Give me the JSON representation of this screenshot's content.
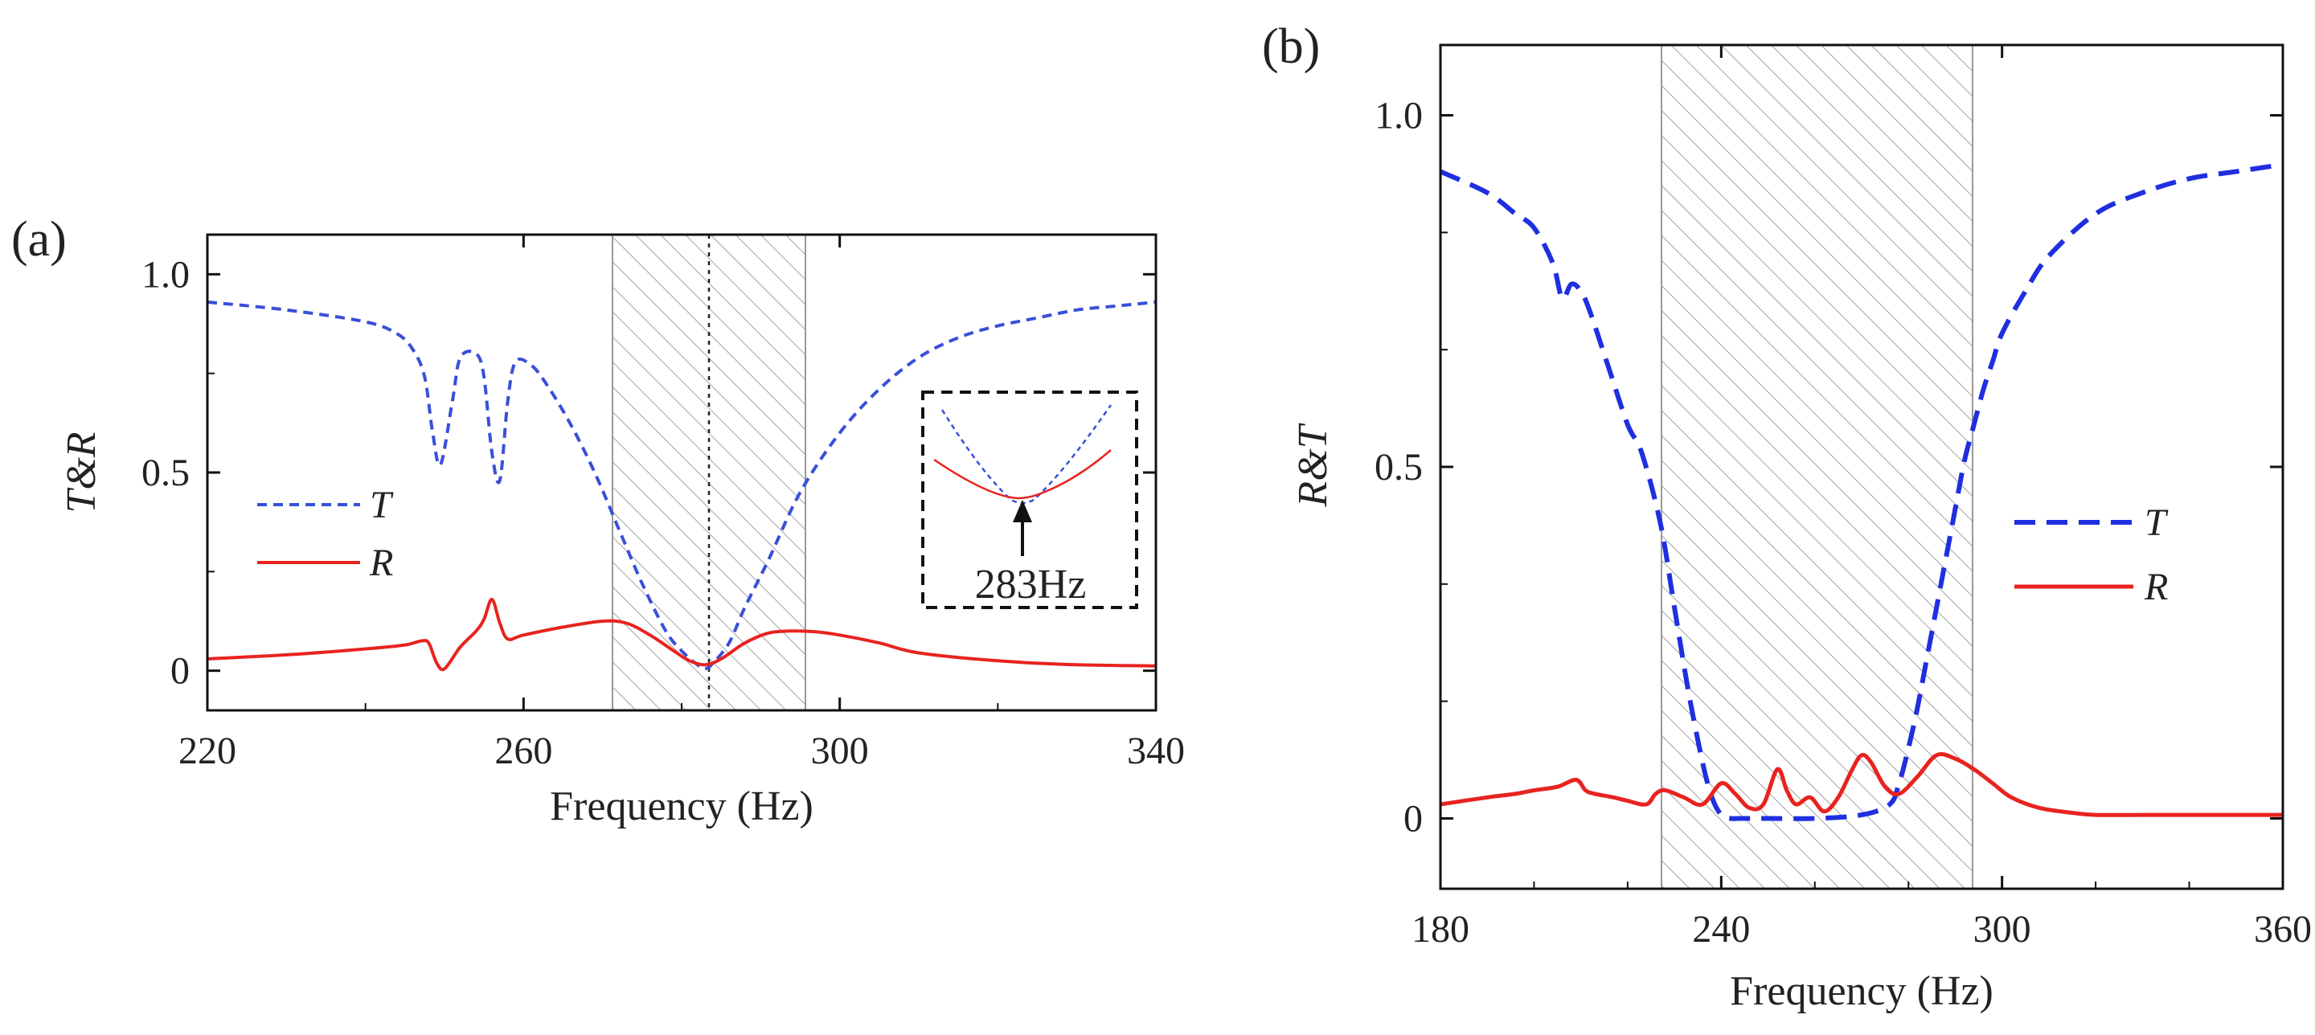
{
  "chart_data": [
    {
      "panel": "(a)",
      "type": "line",
      "xlabel": "Frequency (Hz)",
      "ylabel": "T&R",
      "xlim": [
        220,
        340
      ],
      "ylim": [
        -0.1,
        1.1
      ],
      "xticks": [
        220,
        260,
        300,
        340
      ],
      "yticks": [
        0,
        0.5,
        1.0
      ],
      "ytick_labels": [
        "0",
        "0.5",
        "1.0"
      ],
      "band": [
        271,
        295
      ],
      "marker_line_x": 283,
      "series": [
        {
          "name": "T",
          "style": "dashed",
          "color": "#3a4fd8",
          "x": [
            220,
            230,
            240,
            244,
            246,
            247.5,
            248.5,
            249.5,
            251,
            252,
            254,
            255,
            256,
            257,
            258,
            259,
            261,
            263,
            266,
            269,
            272,
            275,
            278,
            280,
            282,
            283,
            284,
            286,
            288,
            291,
            295,
            300,
            305,
            310,
            315,
            320,
            325,
            330,
            335,
            340
          ],
          "values": [
            0.93,
            0.91,
            0.88,
            0.85,
            0.81,
            0.74,
            0.6,
            0.52,
            0.68,
            0.79,
            0.8,
            0.74,
            0.55,
            0.48,
            0.68,
            0.78,
            0.77,
            0.72,
            0.62,
            0.5,
            0.36,
            0.22,
            0.1,
            0.05,
            0.015,
            0.005,
            0.02,
            0.07,
            0.16,
            0.28,
            0.45,
            0.6,
            0.71,
            0.79,
            0.84,
            0.87,
            0.89,
            0.91,
            0.92,
            0.93
          ]
        },
        {
          "name": "R",
          "style": "solid",
          "color": "#e8231f",
          "x": [
            220,
            230,
            240,
            245,
            247,
            248,
            249,
            250,
            252,
            254,
            255,
            256,
            257,
            258,
            260,
            265,
            270,
            273,
            276,
            279,
            281,
            283,
            285,
            288,
            291,
            294,
            297,
            300,
            305,
            310,
            320,
            330,
            340
          ],
          "values": [
            0.03,
            0.04,
            0.055,
            0.065,
            0.075,
            0.07,
            0.02,
            0.005,
            0.06,
            0.1,
            0.13,
            0.18,
            0.12,
            0.08,
            0.09,
            0.11,
            0.125,
            0.12,
            0.09,
            0.05,
            0.025,
            0.015,
            0.03,
            0.07,
            0.095,
            0.1,
            0.098,
            0.09,
            0.07,
            0.045,
            0.025,
            0.015,
            0.012
          ]
        }
      ],
      "legend": [
        {
          "label": "T",
          "style": "dashed",
          "color": "#3a4fd8"
        },
        {
          "label": "R",
          "style": "solid",
          "color": "#e8231f"
        }
      ],
      "legend_position": "left-center",
      "inset": {
        "annotation": "283Hz",
        "description_position": "right-center"
      }
    },
    {
      "panel": "(b)",
      "type": "line",
      "xlabel": "Frequency (Hz)",
      "ylabel": "R&T",
      "xlim": [
        180,
        360
      ],
      "ylim": [
        -0.1,
        1.1
      ],
      "xticks": [
        180,
        240,
        300,
        360
      ],
      "yticks": [
        0,
        0.5,
        1.0
      ],
      "ytick_labels": [
        "0",
        "0.5",
        "1.0"
      ],
      "band": [
        228,
        294
      ],
      "series": [
        {
          "name": "T",
          "style": "dashed",
          "color": "#1f2fe0",
          "x": [
            180,
            190,
            196,
            200,
            204,
            206,
            208,
            210,
            212,
            216,
            220,
            223,
            227,
            230,
            233,
            236,
            238,
            240,
            242,
            244,
            250,
            260,
            270,
            276,
            278,
            280,
            282,
            284,
            286,
            288,
            290,
            292,
            294,
            296,
            298,
            300,
            305,
            310,
            320,
            330,
            340,
            350,
            360
          ],
          "values": [
            0.92,
            0.89,
            0.86,
            0.84,
            0.79,
            0.74,
            0.76,
            0.75,
            0.72,
            0.64,
            0.56,
            0.52,
            0.42,
            0.3,
            0.18,
            0.08,
            0.03,
            0.005,
            0.0,
            0.0,
            0.0,
            0.0,
            0.005,
            0.02,
            0.05,
            0.1,
            0.16,
            0.23,
            0.3,
            0.37,
            0.44,
            0.51,
            0.56,
            0.61,
            0.65,
            0.69,
            0.75,
            0.8,
            0.86,
            0.89,
            0.91,
            0.92,
            0.93
          ]
        },
        {
          "name": "R",
          "style": "solid",
          "color": "#e8231f",
          "x": [
            180,
            190,
            196,
            200,
            205,
            209,
            211,
            213,
            217,
            220,
            224,
            226,
            228,
            232,
            236,
            240,
            243,
            246,
            249,
            252,
            254,
            256,
            259,
            262,
            265,
            268,
            270,
            272,
            275,
            278,
            282,
            286,
            290,
            294,
            298,
            302,
            308,
            315,
            320,
            330,
            340,
            350,
            360
          ],
          "values": [
            0.02,
            0.03,
            0.035,
            0.04,
            0.045,
            0.055,
            0.04,
            0.035,
            0.03,
            0.025,
            0.02,
            0.035,
            0.04,
            0.03,
            0.02,
            0.05,
            0.035,
            0.015,
            0.02,
            0.07,
            0.04,
            0.02,
            0.03,
            0.01,
            0.03,
            0.07,
            0.09,
            0.08,
            0.045,
            0.035,
            0.06,
            0.09,
            0.085,
            0.07,
            0.05,
            0.03,
            0.015,
            0.008,
            0.005,
            0.005,
            0.005,
            0.005,
            0.005
          ]
        }
      ],
      "legend": [
        {
          "label": "T",
          "style": "dashed",
          "color": "#1f2fe0"
        },
        {
          "label": "R",
          "style": "solid",
          "color": "#e8231f"
        }
      ],
      "legend_position": "right-center"
    }
  ]
}
